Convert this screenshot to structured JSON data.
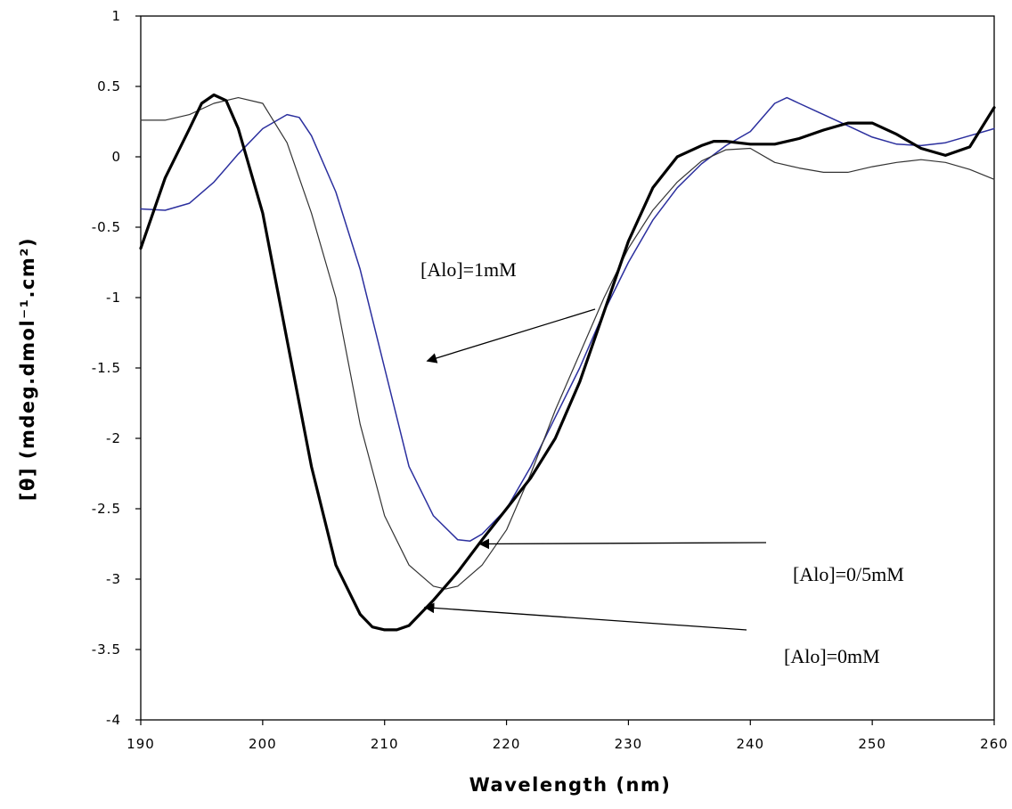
{
  "chart_data": {
    "type": "line",
    "xlabel": "Wavelength (nm)",
    "ylabel": "[θ] (mdeg.dmol⁻¹.cm²)",
    "xlim": [
      190,
      260
    ],
    "ylim": [
      -4,
      1
    ],
    "x_ticks": [
      "190",
      "200",
      "210",
      "220",
      "230",
      "240",
      "250",
      "260"
    ],
    "y_ticks": [
      "1",
      "0.5",
      "0",
      "-0.5",
      "-1",
      "-1.5",
      "-2",
      "-2.5",
      "-3",
      "-3.5",
      "-4"
    ],
    "grid": false,
    "series": [
      {
        "name": "[Alo]=1mM",
        "color": "#2b2f9e",
        "x": [
          190,
          192,
          194,
          196,
          198,
          200,
          202,
          203,
          204,
          206,
          208,
          210,
          212,
          214,
          216,
          217,
          218,
          220,
          222,
          224,
          226,
          228,
          230,
          232,
          234,
          236,
          238,
          240,
          242,
          243,
          244,
          246,
          248,
          250,
          252,
          254,
          256,
          258,
          260
        ],
        "y": [
          -0.37,
          -0.38,
          -0.33,
          -0.18,
          0.02,
          0.2,
          0.3,
          0.28,
          0.15,
          -0.25,
          -0.8,
          -1.5,
          -2.2,
          -2.55,
          -2.72,
          -2.73,
          -2.68,
          -2.5,
          -2.2,
          -1.85,
          -1.5,
          -1.1,
          -0.75,
          -0.45,
          -0.22,
          -0.05,
          0.08,
          0.18,
          0.38,
          0.42,
          0.38,
          0.3,
          0.22,
          0.14,
          0.09,
          0.08,
          0.1,
          0.15,
          0.2
        ]
      },
      {
        "name": "[Alo]=0/5mM",
        "color": "#333333",
        "x": [
          190,
          192,
          194,
          196,
          198,
          200,
          202,
          204,
          206,
          208,
          210,
          212,
          214,
          215,
          216,
          218,
          220,
          222,
          224,
          226,
          228,
          230,
          232,
          234,
          236,
          238,
          240,
          242,
          244,
          246,
          248,
          250,
          252,
          254,
          256,
          258,
          260
        ],
        "y": [
          0.26,
          0.26,
          0.3,
          0.38,
          0.42,
          0.38,
          0.1,
          -0.4,
          -1.0,
          -1.9,
          -2.55,
          -2.9,
          -3.05,
          -3.07,
          -3.05,
          -2.9,
          -2.65,
          -2.25,
          -1.8,
          -1.4,
          -1.0,
          -0.65,
          -0.38,
          -0.18,
          -0.03,
          0.05,
          0.06,
          -0.04,
          -0.08,
          -0.11,
          -0.11,
          -0.07,
          -0.04,
          -0.02,
          -0.04,
          -0.09,
          -0.16
        ]
      },
      {
        "name": "[Alo]=0mM",
        "color": "#000000",
        "x": [
          190,
          192,
          194,
          195,
          196,
          197,
          198,
          200,
          202,
          204,
          206,
          208,
          209,
          210,
          211,
          212,
          214,
          216,
          218,
          220,
          222,
          224,
          226,
          228,
          230,
          232,
          234,
          236,
          237,
          238,
          240,
          242,
          244,
          246,
          248,
          250,
          252,
          254,
          256,
          258,
          260
        ],
        "y": [
          -0.65,
          -0.15,
          0.2,
          0.38,
          0.44,
          0.4,
          0.2,
          -0.4,
          -1.3,
          -2.2,
          -2.9,
          -3.25,
          -3.34,
          -3.36,
          -3.36,
          -3.33,
          -3.15,
          -2.95,
          -2.72,
          -2.5,
          -2.28,
          -2.0,
          -1.6,
          -1.1,
          -0.6,
          -0.22,
          0.0,
          0.08,
          0.11,
          0.11,
          0.09,
          0.09,
          0.13,
          0.19,
          0.24,
          0.24,
          0.16,
          0.06,
          0.01,
          0.07,
          0.35
        ]
      }
    ],
    "annotations": [
      {
        "text": "[Alo]=1mM",
        "arrow_to": [
          213.5,
          -1.45
        ]
      },
      {
        "text": "[Alo]=0/5mM",
        "arrow_to": [
          217.8,
          -2.75
        ]
      },
      {
        "text": "[Alo]=0mM",
        "arrow_to": [
          213.3,
          -3.2
        ]
      }
    ]
  }
}
